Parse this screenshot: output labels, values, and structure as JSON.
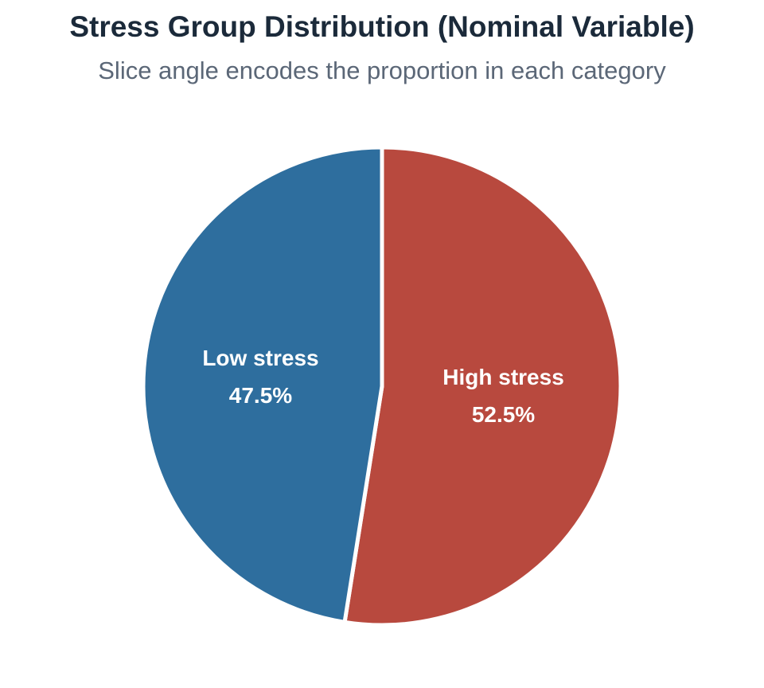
{
  "chart_data": {
    "type": "pie",
    "title": "Stress Group Distribution (Nominal Variable)",
    "subtitle": "Slice angle encodes the proportion in each category",
    "categories": [
      "High stress",
      "Low stress"
    ],
    "values": [
      52.5,
      47.5
    ],
    "value_labels": [
      "52.5%",
      "47.5%"
    ],
    "colors": [
      "#b8493e",
      "#2e6e9e"
    ],
    "start_angle": "12 o'clock",
    "direction": "clockwise",
    "legend": "none"
  }
}
